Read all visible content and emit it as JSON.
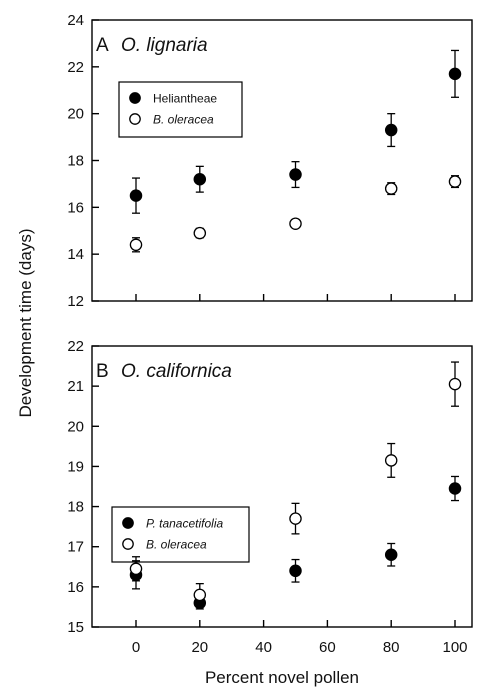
{
  "chart_data": [
    {
      "type": "scatter",
      "panel_letter": "A",
      "species": "O. lignaria",
      "x": [
        0,
        20,
        50,
        80,
        100
      ],
      "xlim": [
        0,
        100
      ],
      "ylim": [
        12,
        24
      ],
      "yticks": [
        12,
        14,
        16,
        18,
        20,
        22,
        24
      ],
      "legend_position": "upper-left",
      "series": [
        {
          "name": "Heliantheae",
          "marker": "filled-circle",
          "color": "#000000",
          "y": [
            16.5,
            17.2,
            17.4,
            19.3,
            21.7
          ],
          "err": [
            0.75,
            0.55,
            0.55,
            0.7,
            1.0
          ]
        },
        {
          "name": "B. oleracea",
          "marker": "open-circle",
          "color": "#000000",
          "y": [
            14.4,
            14.9,
            15.3,
            16.8,
            17.1
          ],
          "err": [
            0.3,
            0.2,
            0.15,
            0.25,
            0.25
          ]
        }
      ]
    },
    {
      "type": "scatter",
      "panel_letter": "B",
      "species": "O. californica",
      "x": [
        0,
        20,
        50,
        80,
        100
      ],
      "xlim": [
        0,
        100
      ],
      "ylim": [
        15,
        22
      ],
      "yticks": [
        15,
        16,
        17,
        18,
        19,
        20,
        21,
        22
      ],
      "legend_position": "middle-left",
      "series": [
        {
          "name": "P. tanacetifolia",
          "marker": "filled-circle",
          "color": "#000000",
          "y": [
            16.3,
            15.6,
            16.4,
            16.8,
            18.45
          ],
          "err": [
            0.35,
            0.15,
            0.28,
            0.28,
            0.3
          ]
        },
        {
          "name": "B. oleracea",
          "marker": "open-circle",
          "color": "#000000",
          "y": [
            16.45,
            15.8,
            17.7,
            19.15,
            21.05
          ],
          "err": [
            0.3,
            0.28,
            0.38,
            0.42,
            0.55
          ]
        }
      ]
    }
  ],
  "shared": {
    "xticks": [
      0,
      20,
      40,
      60,
      80,
      100
    ],
    "xlabel": "Percent novel pollen",
    "ylabel": "Development time (days)"
  }
}
